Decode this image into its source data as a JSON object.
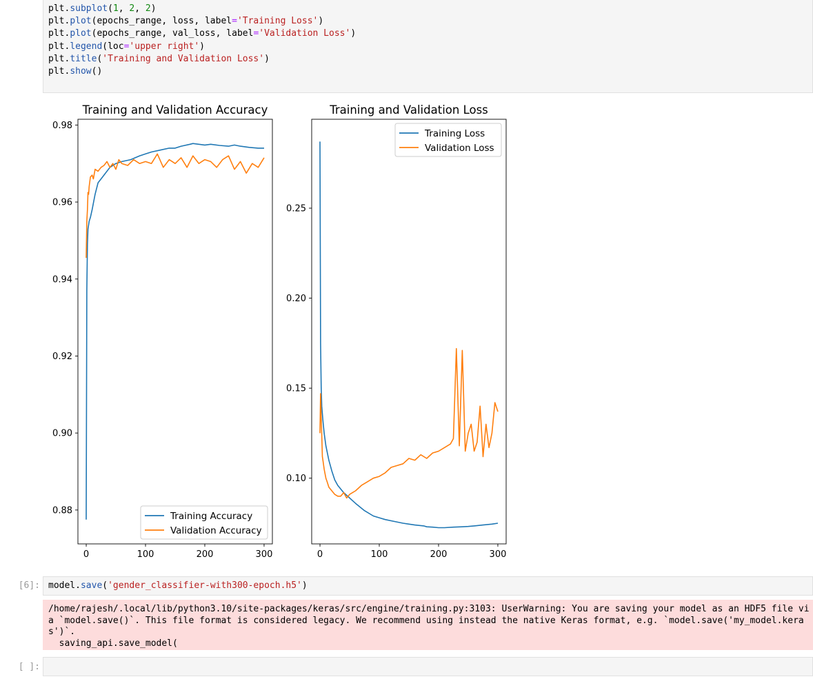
{
  "top_cell": {
    "lines": [
      [
        {
          "t": "plt",
          "c": "name"
        },
        {
          "t": ".",
          "c": "name"
        },
        {
          "t": "subplot",
          "c": "fn"
        },
        {
          "t": "(",
          "c": "name"
        },
        {
          "t": "1",
          "c": "num"
        },
        {
          "t": ", ",
          "c": "name"
        },
        {
          "t": "2",
          "c": "num"
        },
        {
          "t": ", ",
          "c": "name"
        },
        {
          "t": "2",
          "c": "num"
        },
        {
          "t": ")",
          "c": "name"
        }
      ],
      [
        {
          "t": "plt",
          "c": "name"
        },
        {
          "t": ".",
          "c": "name"
        },
        {
          "t": "plot",
          "c": "fn"
        },
        {
          "t": "(epochs_range, loss, label",
          "c": "name"
        },
        {
          "t": "=",
          "c": "op"
        },
        {
          "t": "'Training Loss'",
          "c": "str"
        },
        {
          "t": ")",
          "c": "name"
        }
      ],
      [
        {
          "t": "plt",
          "c": "name"
        },
        {
          "t": ".",
          "c": "name"
        },
        {
          "t": "plot",
          "c": "fn"
        },
        {
          "t": "(epochs_range, val_loss, label",
          "c": "name"
        },
        {
          "t": "=",
          "c": "op"
        },
        {
          "t": "'Validation Loss'",
          "c": "str"
        },
        {
          "t": ")",
          "c": "name"
        }
      ],
      [
        {
          "t": "plt",
          "c": "name"
        },
        {
          "t": ".",
          "c": "name"
        },
        {
          "t": "legend",
          "c": "fn"
        },
        {
          "t": "(loc",
          "c": "name"
        },
        {
          "t": "=",
          "c": "op"
        },
        {
          "t": "'upper right'",
          "c": "str"
        },
        {
          "t": ")",
          "c": "name"
        }
      ],
      [
        {
          "t": "plt",
          "c": "name"
        },
        {
          "t": ".",
          "c": "name"
        },
        {
          "t": "title",
          "c": "fn"
        },
        {
          "t": "(",
          "c": "name"
        },
        {
          "t": "'Training and Validation Loss'",
          "c": "str"
        },
        {
          "t": ")",
          "c": "name"
        }
      ],
      [
        {
          "t": "plt",
          "c": "name"
        },
        {
          "t": ".",
          "c": "name"
        },
        {
          "t": "show",
          "c": "fn"
        },
        {
          "t": "()",
          "c": "name"
        }
      ]
    ]
  },
  "colors": {
    "training": "#1f77b4",
    "validation": "#ff7f0e",
    "cell_bg": "#f5f5f5",
    "stderr_bg": "#fddcdc",
    "prompt": "#9a9a9a"
  },
  "chart_data": [
    {
      "type": "line",
      "title": "Training and Validation Accuracy",
      "xlabel": "",
      "ylabel": "",
      "xlim": [
        -14,
        314
      ],
      "ylim": [
        0.8712,
        0.9815
      ],
      "xticks": [
        0,
        100,
        200,
        300
      ],
      "yticks": [
        0.88,
        0.9,
        0.92,
        0.94,
        0.96,
        0.98
      ],
      "ytick_labels": [
        "0.88",
        "0.90",
        "0.92",
        "0.94",
        "0.96",
        "0.98"
      ],
      "legend": "lower right",
      "grid": false,
      "series": [
        {
          "name": "Training Accuracy",
          "x": [
            0,
            1,
            2,
            3,
            5,
            7,
            10,
            15,
            20,
            25,
            30,
            40,
            50,
            60,
            75,
            90,
            100,
            110,
            125,
            140,
            150,
            160,
            175,
            180,
            190,
            200,
            210,
            225,
            240,
            250,
            260,
            275,
            290,
            300
          ],
          "values": [
            0.8775,
            0.937,
            0.949,
            0.953,
            0.955,
            0.956,
            0.958,
            0.962,
            0.965,
            0.966,
            0.967,
            0.969,
            0.97,
            0.9705,
            0.971,
            0.972,
            0.9725,
            0.973,
            0.9735,
            0.974,
            0.974,
            0.9745,
            0.975,
            0.9752,
            0.975,
            0.9748,
            0.975,
            0.9747,
            0.9745,
            0.9748,
            0.9745,
            0.9742,
            0.974,
            0.974
          ]
        },
        {
          "name": "Validation Accuracy",
          "x": [
            0,
            1,
            2,
            3,
            4,
            5,
            7,
            10,
            12,
            15,
            20,
            25,
            30,
            35,
            40,
            45,
            50,
            55,
            60,
            70,
            80,
            90,
            100,
            110,
            120,
            130,
            140,
            150,
            160,
            170,
            180,
            190,
            200,
            210,
            220,
            230,
            240,
            250,
            260,
            270,
            280,
            290,
            300
          ],
          "values": [
            0.9455,
            0.955,
            0.958,
            0.9625,
            0.962,
            0.964,
            0.9665,
            0.967,
            0.966,
            0.9685,
            0.968,
            0.969,
            0.9695,
            0.9705,
            0.969,
            0.97,
            0.9685,
            0.971,
            0.97,
            0.9695,
            0.971,
            0.97,
            0.9705,
            0.97,
            0.9725,
            0.969,
            0.971,
            0.97,
            0.9715,
            0.969,
            0.972,
            0.97,
            0.971,
            0.9705,
            0.969,
            0.971,
            0.972,
            0.9685,
            0.9705,
            0.9675,
            0.97,
            0.969,
            0.9715
          ]
        }
      ]
    },
    {
      "type": "line",
      "title": "Training and Validation Loss",
      "xlabel": "",
      "ylabel": "",
      "xlim": [
        -14,
        314
      ],
      "ylim": [
        0.0635,
        0.2994
      ],
      "xticks": [
        0,
        100,
        200,
        300
      ],
      "yticks": [
        0.1,
        0.15,
        0.2,
        0.25
      ],
      "ytick_labels": [
        "0.10",
        "0.15",
        "0.20",
        "0.25"
      ],
      "legend": "upper right",
      "grid": false,
      "series": [
        {
          "name": "Training Loss",
          "x": [
            0,
            1,
            2,
            3,
            5,
            7,
            10,
            15,
            20,
            25,
            30,
            40,
            50,
            60,
            75,
            90,
            100,
            110,
            125,
            140,
            150,
            160,
            175,
            180,
            190,
            200,
            210,
            225,
            240,
            250,
            260,
            275,
            290,
            300
          ],
          "values": [
            0.287,
            0.175,
            0.15,
            0.14,
            0.132,
            0.125,
            0.118,
            0.11,
            0.104,
            0.099,
            0.096,
            0.092,
            0.089,
            0.086,
            0.082,
            0.079,
            0.078,
            0.077,
            0.076,
            0.075,
            0.0745,
            0.074,
            0.0735,
            0.073,
            0.0728,
            0.0725,
            0.0725,
            0.0728,
            0.073,
            0.0732,
            0.0735,
            0.074,
            0.0745,
            0.075
          ]
        },
        {
          "name": "Validation Loss",
          "x": [
            0,
            1,
            2,
            3,
            4,
            5,
            7,
            10,
            12,
            15,
            20,
            25,
            30,
            35,
            40,
            45,
            50,
            55,
            60,
            70,
            80,
            90,
            100,
            110,
            120,
            130,
            140,
            150,
            160,
            170,
            180,
            190,
            200,
            210,
            220,
            225,
            230,
            235,
            240,
            245,
            250,
            255,
            260,
            265,
            270,
            275,
            280,
            285,
            290,
            295,
            300
          ],
          "values": [
            0.125,
            0.147,
            0.133,
            0.124,
            0.112,
            0.11,
            0.105,
            0.1,
            0.098,
            0.095,
            0.093,
            0.091,
            0.09,
            0.09,
            0.092,
            0.089,
            0.091,
            0.092,
            0.093,
            0.096,
            0.098,
            0.1,
            0.101,
            0.103,
            0.106,
            0.107,
            0.108,
            0.111,
            0.11,
            0.113,
            0.111,
            0.114,
            0.115,
            0.117,
            0.119,
            0.122,
            0.172,
            0.118,
            0.171,
            0.115,
            0.125,
            0.13,
            0.115,
            0.12,
            0.14,
            0.112,
            0.13,
            0.117,
            0.125,
            0.142,
            0.137
          ]
        }
      ]
    }
  ],
  "cell6": {
    "prompt": "[6]:",
    "code": [
      [
        {
          "t": "model",
          "c": "name"
        },
        {
          "t": ".",
          "c": "name"
        },
        {
          "t": "save",
          "c": "fn"
        },
        {
          "t": "(",
          "c": "name"
        },
        {
          "t": "'gender_classifier-with300-epoch.h5'",
          "c": "str"
        },
        {
          "t": ")",
          "c": "name"
        }
      ]
    ],
    "stderr": [
      "/home/rajesh/.local/lib/python3.10/site-packages/keras/src/engine/training.py:3103: UserWarning: You are saving your model as an HDF5 file vi",
      "a `model.save()`. This file format is considered legacy. We recommend using instead the native Keras format, e.g. `model.save('my_model.kera",
      "s')`.",
      "  saving_api.save_model("
    ]
  },
  "empty_cell": {
    "prompt": "[ ]:"
  }
}
